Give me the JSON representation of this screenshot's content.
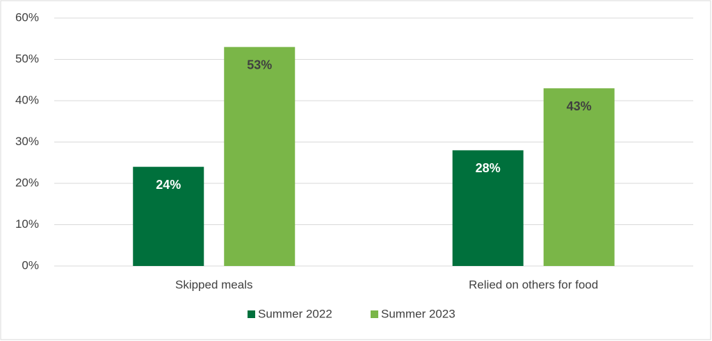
{
  "chart_data": {
    "type": "bar",
    "categories": [
      "Skipped meals",
      "Relied on others for food"
    ],
    "series": [
      {
        "name": "Summer 2022",
        "color": "#00703c",
        "values": [
          24,
          28
        ],
        "value_labels": [
          "24%",
          "28%"
        ],
        "label_color": "#ffffff"
      },
      {
        "name": "Summer 2023",
        "color": "#7ab648",
        "values": [
          53,
          43
        ],
        "value_labels": [
          "53%",
          "43%"
        ],
        "label_color": "#404040"
      }
    ],
    "ylim": [
      0,
      60
    ],
    "yticks": [
      {
        "value": 0,
        "label": "0%"
      },
      {
        "value": 10,
        "label": "10%"
      },
      {
        "value": 20,
        "label": "20%"
      },
      {
        "value": 30,
        "label": "30%"
      },
      {
        "value": 40,
        "label": "40%"
      },
      {
        "value": 50,
        "label": "50%"
      },
      {
        "value": 60,
        "label": "60%"
      }
    ],
    "grid": true,
    "legend": "bottom"
  }
}
